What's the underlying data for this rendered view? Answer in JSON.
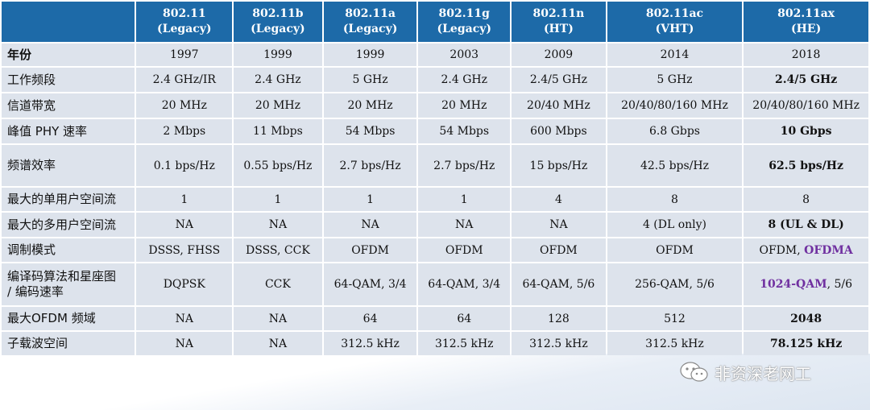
{
  "header": {
    "cols": [
      {
        "line1": "802.11",
        "line2": "(Legacy)"
      },
      {
        "line1": "802.11b",
        "line2": "(Legacy)"
      },
      {
        "line1": "802.11a",
        "line2": "(Legacy)"
      },
      {
        "line1": "802.11g",
        "line2": "(Legacy)"
      },
      {
        "line1": "802.11n",
        "line2": "(HT)"
      },
      {
        "line1": "802.11ac",
        "line2": "(VHT)"
      },
      {
        "line1": "802.11ax",
        "line2": "(HE)"
      }
    ]
  },
  "rows": [
    {
      "label": "年份",
      "cells": [
        "1997",
        "1999",
        "1999",
        "2003",
        "2009",
        "2014",
        "2018"
      ]
    },
    {
      "label": "工作频段",
      "cells": [
        "2.4 GHz/IR",
        "2.4 GHz",
        "5 GHz",
        "2.4 GHz",
        "2.4/5 GHz",
        "5 GHz",
        "2.4/5 GHz"
      ]
    },
    {
      "label": "信道带宽",
      "cells": [
        "20 MHz",
        "20 MHz",
        "20 MHz",
        "20 MHz",
        "20/40 MHz",
        "20/40/80/160 MHz",
        "20/40/80/160 MHz"
      ]
    },
    {
      "label": "峰值 PHY 速率",
      "cells": [
        "2 Mbps",
        "11 Mbps",
        "54 Mbps",
        "54 Mbps",
        "600 Mbps",
        "6.8 Gbps",
        "10 Gbps"
      ]
    },
    {
      "label": "频谱效率",
      "cells": [
        "0.1 bps/Hz",
        "0.55 bps/Hz",
        "2.7 bps/Hz",
        "2.7 bps/Hz",
        "15 bps/Hz",
        "42.5 bps/Hz",
        "62.5 bps/Hz"
      ]
    },
    {
      "label": "最大的单用户空间流",
      "cells": [
        "1",
        "1",
        "1",
        "1",
        "4",
        "8",
        "8"
      ]
    },
    {
      "label": "最大的多用户空间流",
      "cells": [
        "NA",
        "NA",
        "NA",
        "NA",
        "NA",
        "4 (DL only)",
        "8 (UL & DL)"
      ]
    },
    {
      "label": "调制模式",
      "cells": [
        "DSSS, FHSS",
        "DSSS, CCK",
        "OFDM",
        "OFDM",
        "OFDM",
        "OFDM",
        "OFDM, "
      ],
      "last_extra": "OFDMA"
    },
    {
      "label_line1": "编译码算法和星座图",
      "label_line2": "/ 编码速率",
      "cells": [
        "DQPSK",
        "CCK",
        "64-QAM, 3/4",
        "64-QAM, 3/4",
        "64-QAM, 5/6",
        "256-QAM, 5/6",
        "1024-QAM"
      ],
      "last_extra": ", 5/6"
    },
    {
      "label": "最大OFDM 频域",
      "cells": [
        "NA",
        "NA",
        "64",
        "64",
        "128",
        "512",
        "2048"
      ]
    },
    {
      "label": "子载波空间",
      "cells": [
        "NA",
        "NA",
        "312.5 kHz",
        "312.5 kHz",
        "312.5 kHz",
        "312.5 kHz",
        "78.125 kHz"
      ]
    }
  ],
  "watermark": {
    "text": "非资深老网工",
    "icon": "wechat-icon"
  },
  "colors": {
    "header_bg": "#1d6aa8",
    "cell_bg": "#dde3ec",
    "highlight": "#7030a0"
  }
}
